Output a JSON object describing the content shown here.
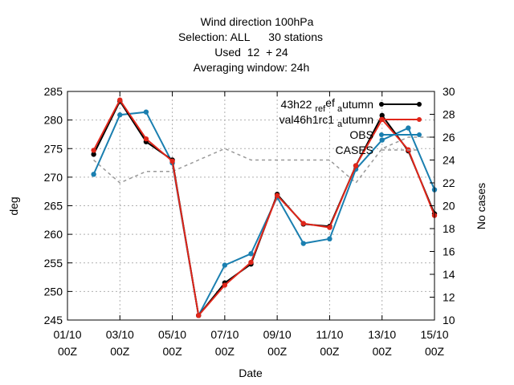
{
  "chart_data": {
    "type": "line",
    "title_lines": [
      "Wind direction 100hPa",
      "Selection: ALL      30 stations",
      "Used  12  + 24",
      "Averaging window: 24h"
    ],
    "xlabel": "Date",
    "ylabel": "deg",
    "y2label": "No cases",
    "ylim": [
      245,
      285
    ],
    "y2lim": [
      10,
      30
    ],
    "yticks": [
      245,
      250,
      255,
      260,
      265,
      270,
      275,
      280,
      285
    ],
    "y2ticks": [
      10,
      12,
      14,
      16,
      18,
      20,
      22,
      24,
      26,
      28,
      30
    ],
    "xticks": [
      {
        "x": 0,
        "l1": "01/10",
        "l2": "00Z"
      },
      {
        "x": 2,
        "l1": "03/10",
        "l2": "00Z"
      },
      {
        "x": 4,
        "l1": "05/10",
        "l2": "00Z"
      },
      {
        "x": 6,
        "l1": "07/10",
        "l2": "00Z"
      },
      {
        "x": 8,
        "l1": "09/10",
        "l2": "00Z"
      },
      {
        "x": 10,
        "l1": "11/10",
        "l2": "00Z"
      },
      {
        "x": 12,
        "l1": "13/10",
        "l2": "00Z"
      },
      {
        "x": 14,
        "l1": "15/10",
        "l2": "00Z"
      }
    ],
    "xlim": [
      0,
      14
    ],
    "grid": true,
    "legend_position": "top-right",
    "x": [
      1,
      2,
      3,
      4,
      5,
      6,
      7,
      8,
      9,
      10,
      11,
      12,
      13,
      14
    ],
    "series": [
      {
        "name": "43h22 ref autumn",
        "legend_parts": [
          "43h22",
          "ref",
          "a",
          "utumn"
        ],
        "color": "#000000",
        "axis": "y",
        "values": [
          274.0,
          283.3,
          276.2,
          273.0,
          245.8,
          251.5,
          254.8,
          267.0,
          261.8,
          261.4,
          272.0,
          280.8,
          274.6,
          263.6
        ]
      },
      {
        "name": "val46h1rc1 autumn",
        "legend_parts": [
          "val46h1rc1",
          "a",
          "utumn"
        ],
        "color": "#e0261a",
        "axis": "y",
        "values": [
          274.7,
          283.5,
          276.7,
          272.8,
          245.8,
          251.1,
          255.1,
          266.8,
          261.9,
          261.2,
          272.0,
          280.1,
          274.8,
          263.3
        ]
      },
      {
        "name": "OBS",
        "color": "#1a7fb0",
        "axis": "y",
        "values": [
          270.5,
          280.9,
          281.4,
          272.5,
          245.8,
          254.6,
          256.6,
          266.5,
          258.4,
          259.2,
          271.4,
          276.5,
          278.6,
          267.8
        ]
      },
      {
        "name": "CASES",
        "color": "#999999",
        "dashed": true,
        "axis": "y2",
        "values": [
          24,
          22,
          23,
          23,
          24,
          25,
          24,
          24,
          24,
          24,
          22,
          25,
          26,
          26
        ]
      }
    ]
  }
}
